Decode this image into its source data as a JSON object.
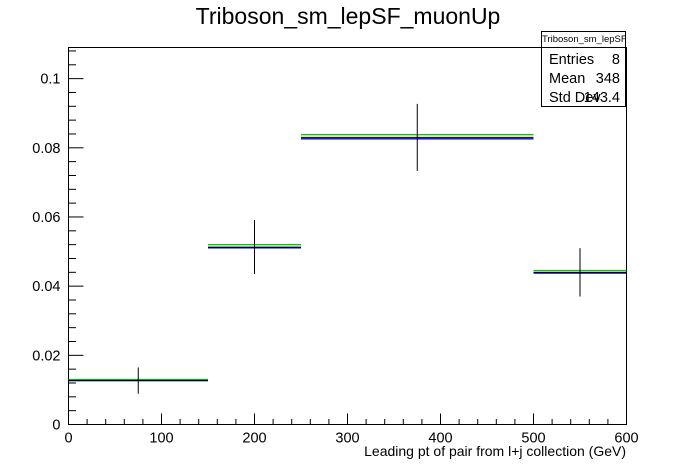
{
  "chart_data": {
    "type": "histogram",
    "title": "Triboson_sm_lepSF_muonUp",
    "xlabel": "Leading pt of pair from l+j collection (GeV)",
    "ylabel": "",
    "xlim": [
      0,
      600
    ],
    "ylim": [
      0,
      0.109
    ],
    "x_ticks": [
      "0",
      "100",
      "200",
      "300",
      "400",
      "500",
      "600"
    ],
    "y_ticks": [
      "0",
      "0.02",
      "0.04",
      "0.06",
      "0.08",
      "0.1"
    ],
    "bins": [
      {
        "x_low": 0,
        "x_high": 150,
        "x_center": 75,
        "y": 0.0127,
        "y_err": 0.0038
      },
      {
        "x_low": 150,
        "x_high": 250,
        "x_center": 200,
        "y": 0.0513,
        "y_err": 0.0078
      },
      {
        "x_low": 250,
        "x_high": 500,
        "x_center": 375,
        "y": 0.083,
        "y_err": 0.0097
      },
      {
        "x_low": 500,
        "x_high": 600,
        "x_center": 550,
        "y": 0.044,
        "y_err": 0.007
      }
    ],
    "variation_lines": [
      {
        "color": "#00cc00",
        "values": [
          0.013,
          0.052,
          0.0838,
          0.0445
        ]
      },
      {
        "color": "#0000cc",
        "values": [
          0.0127,
          0.0511,
          0.0826,
          0.0438
        ]
      }
    ],
    "stats": {
      "header": "Triboson_sm_lepSF_muonUp",
      "rows": [
        {
          "label": "Entries",
          "value": "8"
        },
        {
          "label": "Mean",
          "value": "348"
        },
        {
          "label": "Std Dev",
          "value": "143.4"
        }
      ]
    },
    "grid": false
  }
}
